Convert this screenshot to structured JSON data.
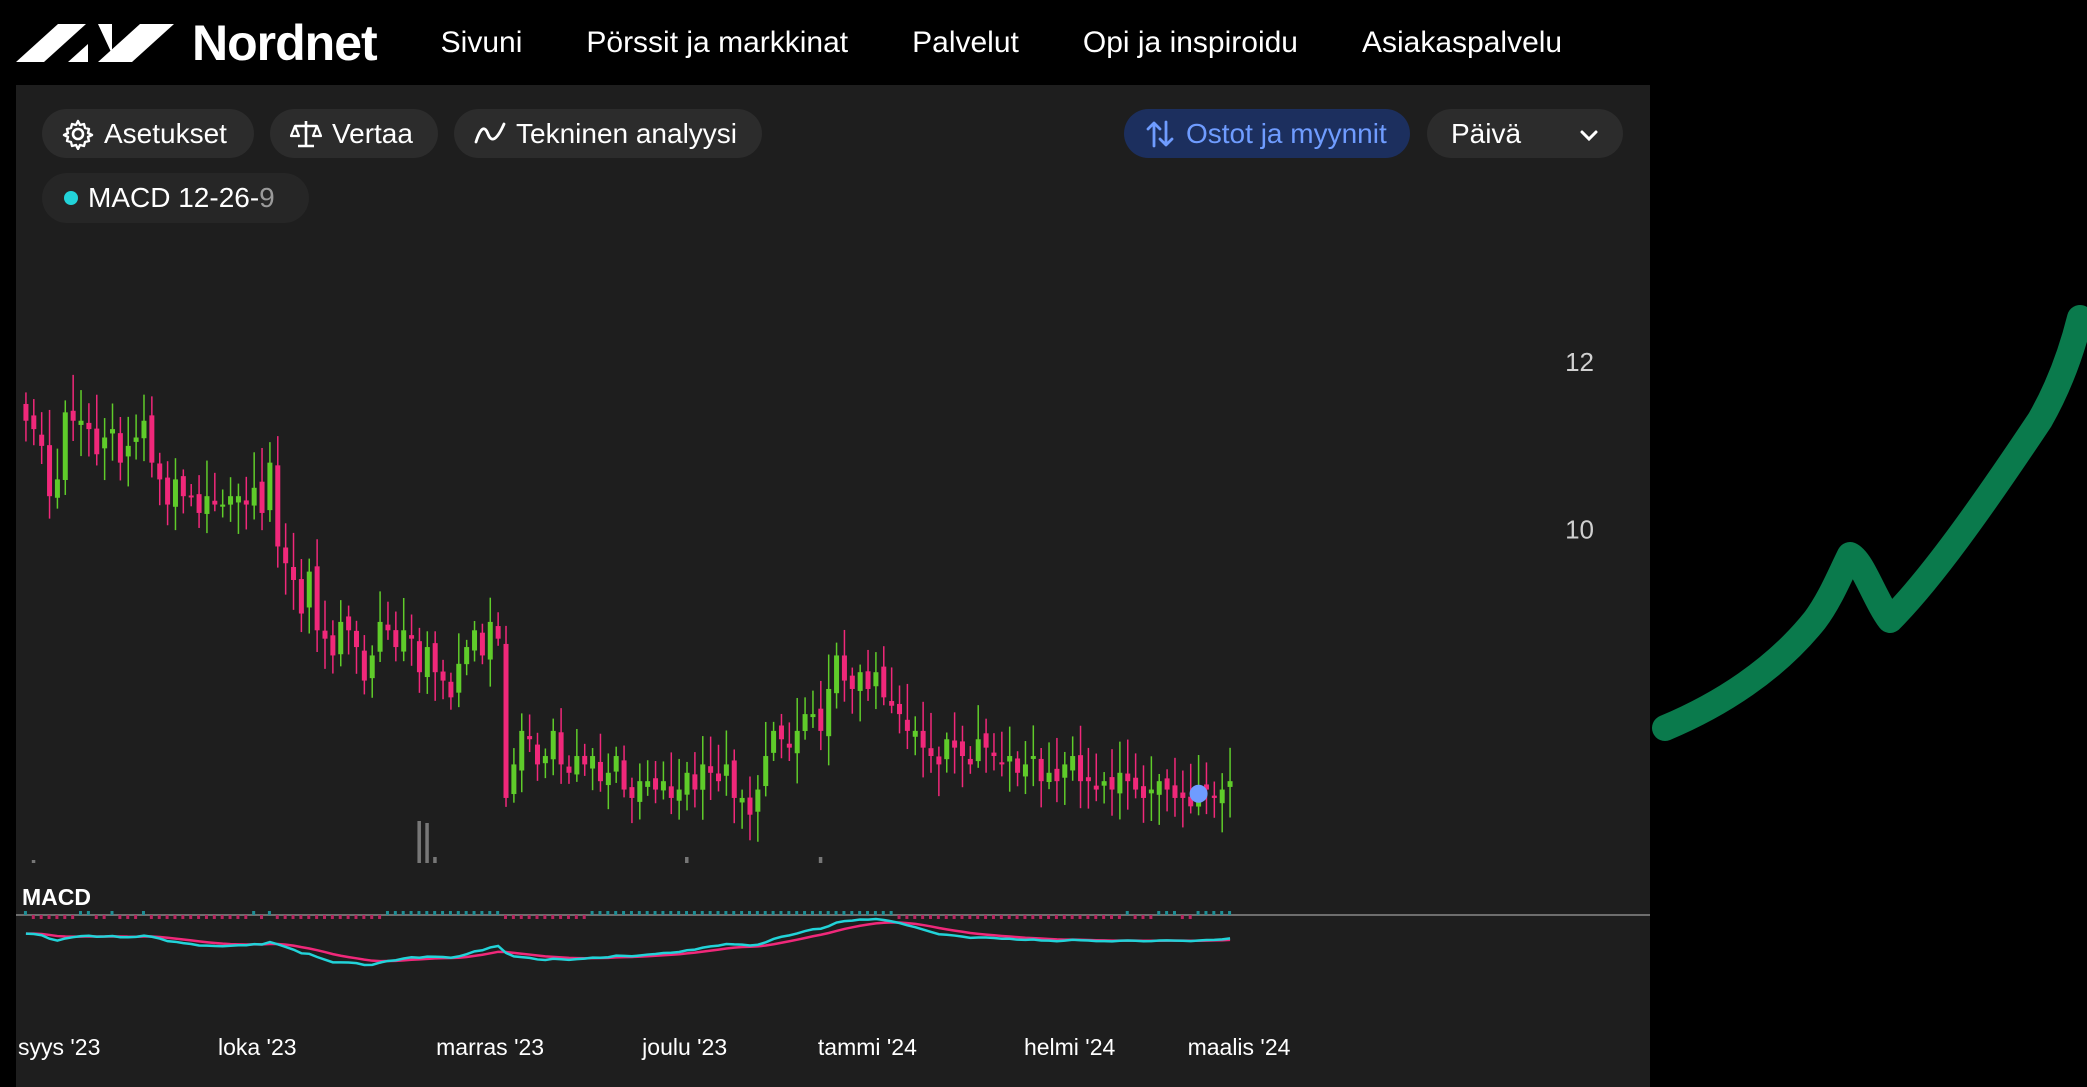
{
  "brand": {
    "name": "Nordnet"
  },
  "nav": {
    "items": [
      "Sivuni",
      "Pörssit ja markkinat",
      "Palvelut",
      "Opi ja inspiroidu",
      "Asiakaspalvelu"
    ]
  },
  "toolbar": {
    "settings_label": "Asetukset",
    "compare_label": "Vertaa",
    "technical_label": "Tekninen analyysi",
    "trades_label": "Ostot ja myynnit",
    "period_label": "Päivä"
  },
  "indicator": {
    "name": "MACD 12-26-",
    "param": "9",
    "pane_label": "MACD"
  },
  "colors": {
    "up": "#5fcc2a",
    "down": "#f0287a",
    "macd_line": "#22d3d9",
    "signal_line": "#f0287a",
    "accent_blue": "#6f9cff",
    "annotation": "#0a7a4c"
  },
  "chart_data": {
    "type": "candlestick",
    "y_ticks": [
      "12",
      "10"
    ],
    "ylim": [
      6.0,
      12.8
    ],
    "x_labels": [
      "syys '23",
      "loka '23",
      "marras '23",
      "joulu '23",
      "tammi '24",
      "helmi '24",
      "maalis '24"
    ],
    "closes": [
      11.3,
      11.2,
      11.0,
      10.4,
      10.6,
      11.4,
      11.3,
      11.3,
      11.2,
      10.9,
      11.1,
      11.2,
      10.8,
      11.0,
      11.1,
      11.3,
      10.8,
      10.6,
      10.3,
      10.6,
      10.4,
      10.4,
      10.2,
      10.4,
      10.3,
      10.3,
      10.4,
      10.4,
      10.3,
      10.5,
      10.2,
      10.8,
      9.8,
      9.6,
      9.4,
      9.0,
      9.5,
      8.8,
      8.7,
      8.5,
      8.9,
      8.8,
      8.6,
      8.2,
      8.5,
      8.9,
      8.8,
      8.6,
      8.8,
      8.7,
      8.3,
      8.6,
      8.3,
      8.2,
      8.0,
      8.4,
      8.6,
      8.8,
      8.5,
      8.9,
      8.7,
      6.8,
      7.2,
      7.6,
      7.5,
      7.2,
      7.3,
      7.6,
      7.2,
      7.1,
      7.3,
      7.2,
      7.3,
      7.0,
      7.1,
      7.3,
      6.9,
      6.8,
      7.0,
      7.0,
      6.9,
      7.0,
      6.8,
      6.9,
      7.1,
      6.9,
      7.2,
      7.1,
      7.0,
      7.2,
      6.8,
      6.8,
      6.6,
      6.9,
      7.3,
      7.6,
      7.5,
      7.4,
      7.6,
      7.8,
      7.8,
      7.6,
      8.1,
      8.5,
      8.2,
      8.1,
      8.3,
      8.1,
      8.3,
      8.0,
      7.9,
      7.8,
      7.6,
      7.6,
      7.4,
      7.3,
      7.2,
      7.5,
      7.4,
      7.3,
      7.2,
      7.5,
      7.4,
      7.3,
      7.2,
      7.3,
      7.1,
      7.2,
      7.3,
      7.0,
      7.1,
      7.0,
      7.2,
      7.3,
      7.0,
      7.0,
      6.9,
      7.0,
      6.9,
      7.1,
      7.0,
      6.9,
      6.8,
      6.9,
      7.0,
      6.9,
      6.8,
      6.8,
      6.7,
      6.9,
      6.9,
      6.8,
      6.9,
      7.0
    ],
    "trade_marker": {
      "label": "Ostot ja myynnit",
      "value": 6.85
    }
  }
}
